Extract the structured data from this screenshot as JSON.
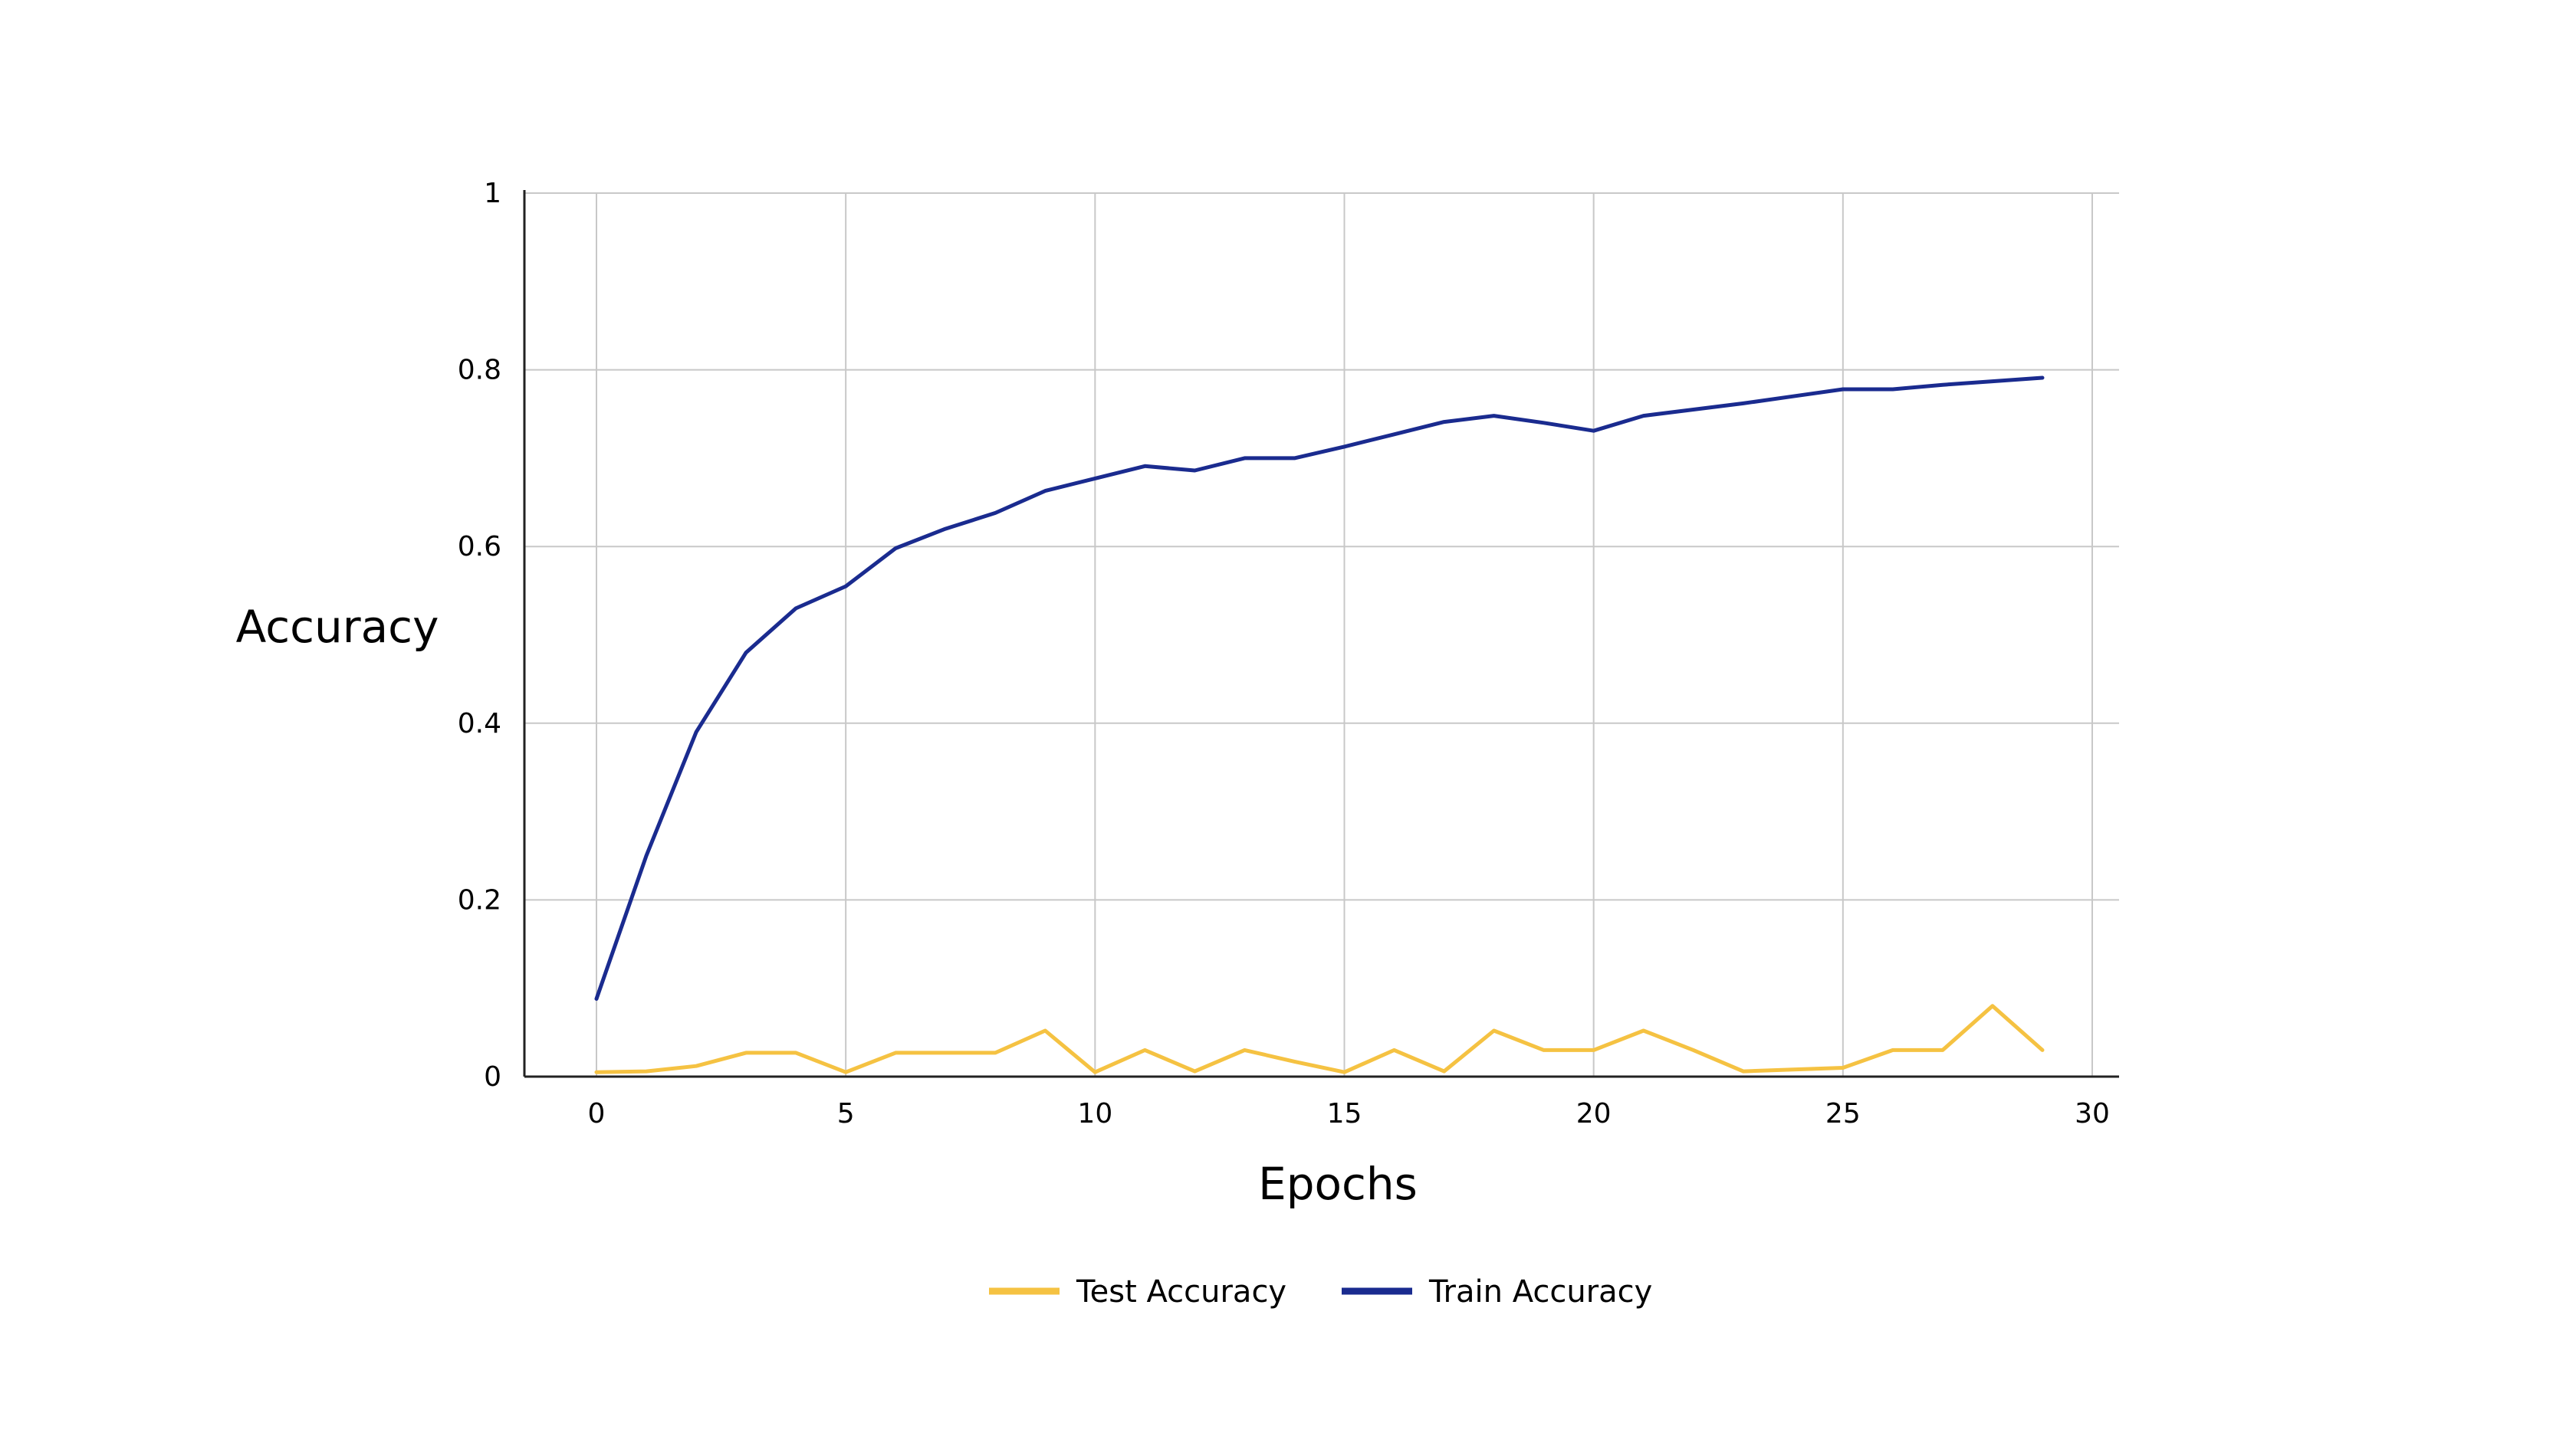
{
  "chart_data": {
    "type": "line",
    "title": "",
    "xlabel": "Epochs",
    "ylabel": "Accuracy",
    "xlim": [
      0,
      30
    ],
    "ylim": [
      0,
      1
    ],
    "xticks": [
      0,
      5,
      10,
      15,
      20,
      25,
      30
    ],
    "yticks": [
      0,
      0.2,
      0.4,
      0.6,
      0.8,
      1
    ],
    "ytick_labels": [
      "0",
      "0.2",
      "0.4",
      "0.6",
      "0.8",
      "1"
    ],
    "grid": true,
    "legend_position": "bottom-center",
    "series": [
      {
        "name": "Test Accuracy",
        "color": "#f5c242",
        "x": [
          0,
          1,
          2,
          3,
          4,
          5,
          6,
          7,
          8,
          9,
          10,
          11,
          12,
          13,
          14,
          15,
          16,
          17,
          18,
          19,
          20,
          21,
          22,
          23,
          24,
          25,
          26,
          27,
          28,
          29
        ],
        "y": [
          0.005,
          0.006,
          0.012,
          0.027,
          0.027,
          0.005,
          0.027,
          0.027,
          0.027,
          0.052,
          0.005,
          0.03,
          0.006,
          0.03,
          0.017,
          0.005,
          0.03,
          0.006,
          0.052,
          0.03,
          0.03,
          0.052,
          0.03,
          0.006,
          0.008,
          0.01,
          0.03,
          0.03,
          0.08,
          0.03
        ]
      },
      {
        "name": "Train Accuracy",
        "color": "#1a2b8f",
        "x": [
          0,
          1,
          2,
          3,
          4,
          5,
          6,
          7,
          8,
          9,
          10,
          11,
          12,
          13,
          14,
          15,
          16,
          17,
          18,
          19,
          20,
          21,
          22,
          23,
          24,
          25,
          26,
          27,
          28,
          29
        ],
        "y": [
          0.088,
          0.25,
          0.39,
          0.48,
          0.53,
          0.555,
          0.598,
          0.62,
          0.638,
          0.663,
          0.677,
          0.691,
          0.686,
          0.7,
          0.7,
          0.713,
          0.727,
          0.741,
          0.748,
          0.74,
          0.731,
          0.748,
          0.755,
          0.762,
          0.77,
          0.778,
          0.778,
          0.783,
          0.787,
          0.791
        ]
      }
    ]
  }
}
